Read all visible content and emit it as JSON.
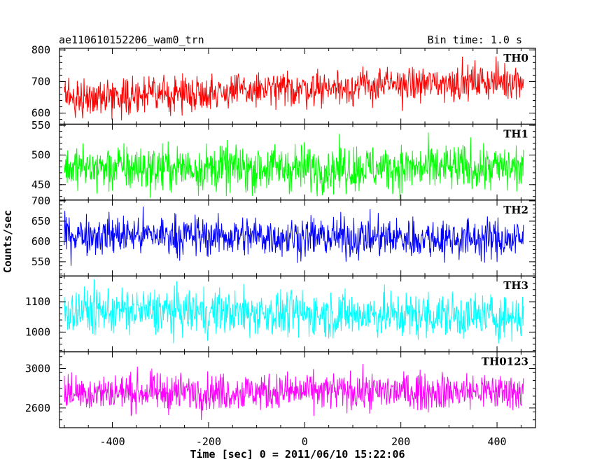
{
  "header": {
    "left": "ae110610152206_wam0_trn",
    "right": "Bin time: 1.0 s"
  },
  "chart_data": {
    "type": "line",
    "xlabel": "Time [sec] 0 = 2011/06/10 15:22:06",
    "ylabel": "Counts/sec",
    "xlim": [
      -510,
      480
    ],
    "data_x_range": [
      -500,
      455
    ],
    "x_ticks": [
      -400,
      -200,
      0,
      200,
      400
    ],
    "panels": [
      {
        "name": "TH0",
        "color": "#ff0000",
        "ylim": [
          565,
          805
        ],
        "y_ticks": [
          600,
          700,
          800
        ],
        "mean_start": 648,
        "mean_end": 705,
        "noise": 28,
        "min": 570,
        "max": 800
      },
      {
        "name": "TH1",
        "color": "#00ff00",
        "ylim": [
          424,
          552
        ],
        "y_ticks": [
          450,
          500,
          550
        ],
        "mean_start": 478,
        "mean_end": 478,
        "noise": 20,
        "min": 425,
        "max": 550
      },
      {
        "name": "TH2",
        "color": "#0000ff",
        "ylim": [
          515,
          702
        ],
        "y_ticks": [
          550,
          600,
          650,
          700
        ],
        "mean_start": 618,
        "mean_end": 605,
        "noise": 25,
        "min": 518,
        "max": 700
      },
      {
        "name": "TH3",
        "color": "#00ffff",
        "ylim": [
          935,
          1185
        ],
        "y_ticks": [
          1000,
          1100
        ],
        "mean_start": 1072,
        "mean_end": 1050,
        "noise": 38,
        "min": 940,
        "max": 1180
      },
      {
        "name": "TH0123",
        "color": "#ff00ff",
        "ylim": [
          2400,
          3170
        ],
        "y_ticks": [
          2600,
          3000
        ],
        "mean_start": 2760,
        "mean_end": 2770,
        "noise": 95,
        "min": 2410,
        "max": 3160
      }
    ]
  }
}
